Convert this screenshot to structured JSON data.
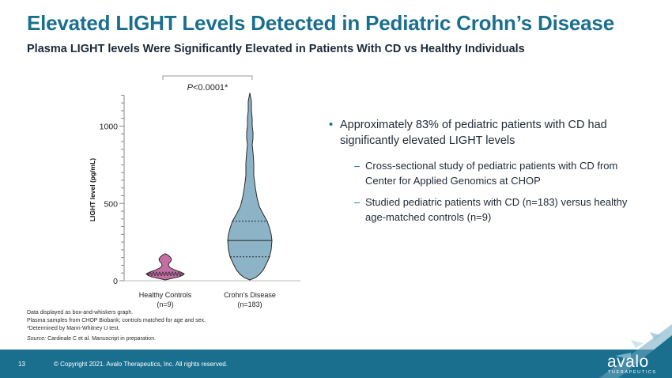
{
  "slide": {
    "title": "Elevated LIGHT Levels Detected in Pediatric Crohn’s Disease",
    "subtitle": "Plasma LIGHT levels Were Significantly Elevated in Patients With CD vs Healthy Individuals"
  },
  "chart_data": {
    "type": "violin",
    "ylabel": "LIGHT level (pg/mL)",
    "ylim": [
      0,
      1200
    ],
    "yticks": [
      0,
      500,
      1000
    ],
    "annotation": "P<0.0001*",
    "groups": [
      {
        "name": "Healthy Controls",
        "n_label": "(n=9)",
        "color": "#c46fa4",
        "min": 5,
        "max": 175,
        "median": 45,
        "q1": 35,
        "q3": 55
      },
      {
        "name": "Crohn’s Disease",
        "n_label": "(n=183)",
        "color": "#8db3c7",
        "min": 5,
        "max": 1215,
        "median": 260,
        "q1": 155,
        "q3": 385
      }
    ]
  },
  "bullets": [
    {
      "text": "Approximately 83% of pediatric patients with CD had significantly elevated LIGHT levels",
      "subs": [
        "Cross-sectional study of pediatric patients with CD from Center for Applied Genomics at CHOP",
        "Studied pediatric patients with CD (n=183) versus healthy age-matched controls (n=9)"
      ]
    }
  ],
  "notes": {
    "line1": "Data displayed as box-and-whiskers graph.",
    "line2": "Plasma samples from CHOP Biobank; controls matched for age and sex.",
    "line3": "*Determined  by Mann-Whitney U test.",
    "source_label": "Source:",
    "source_text": " Cardinale C et al. Manuscript in preparation."
  },
  "footer": {
    "page_number": "13",
    "copyright": "© Copyright 2021. Avalo Therapeutics, Inc. All rights reserved.",
    "logo_text": "avalo",
    "logo_subtext": "THERAPEUTICS"
  },
  "colors": {
    "accent": "#1a6f8f",
    "healthy": "#c46fa4",
    "crohns": "#8db3c7"
  }
}
